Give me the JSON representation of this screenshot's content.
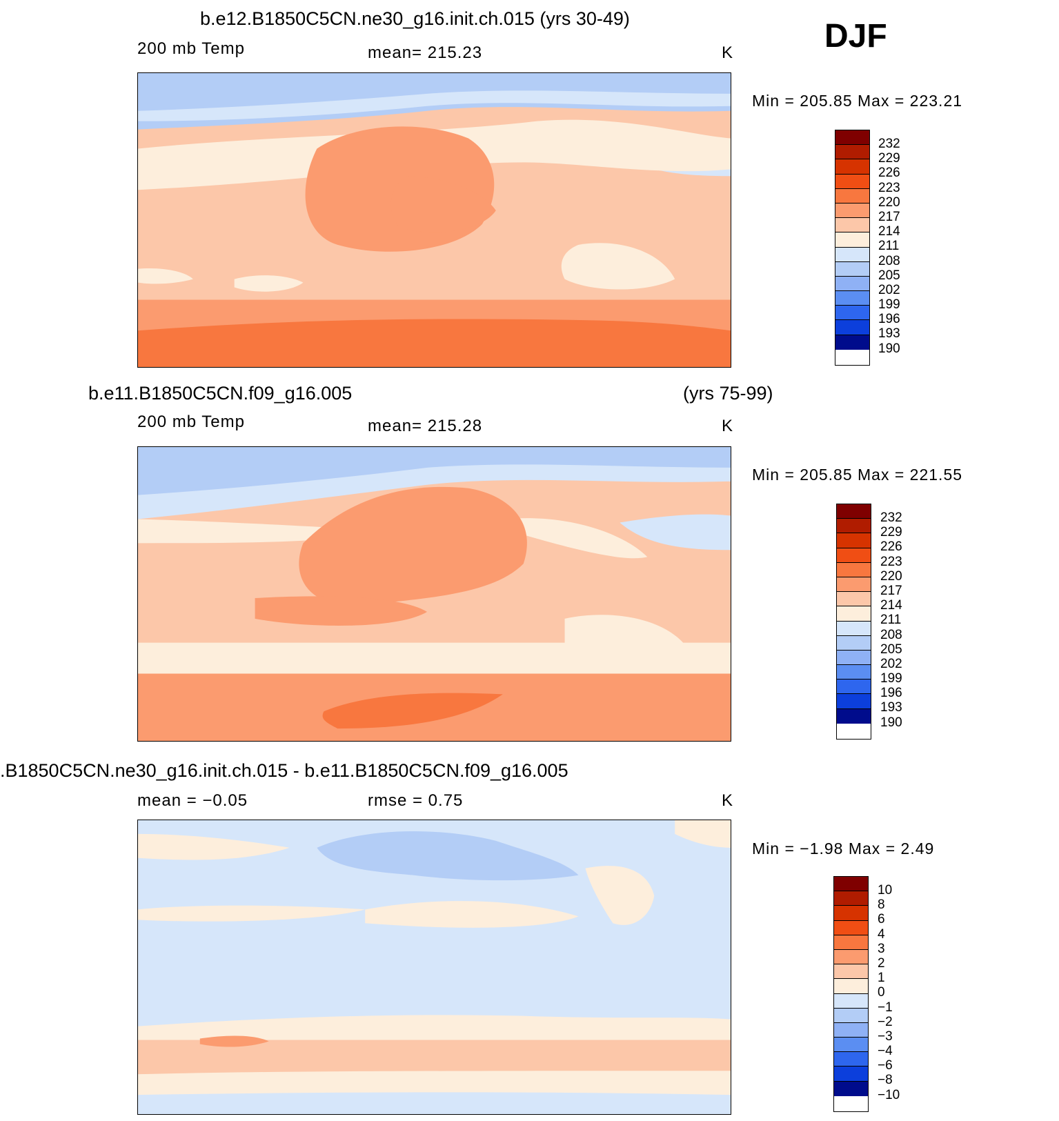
{
  "season": "DJF",
  "panels": [
    {
      "title": "b.e12.B1850C5CN.ne30_g16.init.ch.015 (yrs 30-49)",
      "variable": "200 mb Temp",
      "stat": "mean= 215.23",
      "units": "K",
      "minmax": "Min = 205.85 Max = 223.21",
      "levels": [
        "232",
        "229",
        "226",
        "223",
        "220",
        "217",
        "214",
        "211",
        "208",
        "205",
        "202",
        "199",
        "196",
        "193",
        "190"
      ]
    },
    {
      "title": "b.e11.B1850C5CN.f09_g16.005",
      "title_right": "(yrs 75-99)",
      "variable": "200 mb Temp",
      "stat": "mean= 215.28",
      "units": "K",
      "minmax": "Min = 205.85 Max = 221.55",
      "levels": [
        "232",
        "229",
        "226",
        "223",
        "220",
        "217",
        "214",
        "211",
        "208",
        "205",
        "202",
        "199",
        "196",
        "193",
        "190"
      ]
    },
    {
      "title": ".B1850C5CN.ne30_g16.init.ch.015 - b.e11.B1850C5CN.f09_g16.005",
      "stat_left": "mean = −0.05",
      "stat": "rmse = 0.75",
      "units": "K",
      "minmax": "Min = −1.98 Max = 2.49",
      "levels": [
        "10",
        "8",
        "6",
        "4",
        "3",
        "2",
        "1",
        "0",
        "−1",
        "−2",
        "−3",
        "−4",
        "−6",
        "−8",
        "−10"
      ]
    }
  ],
  "colors": {
    "scale": [
      "#7f0000",
      "#b01c00",
      "#d63300",
      "#f04e14",
      "#f8773f",
      "#fb9b6f",
      "#fcc7a9",
      "#fdeedc",
      "#d6e6fa",
      "#b3cdf6",
      "#8fb1f5",
      "#5b8ef2",
      "#2e66ee",
      "#0c3fdc",
      "#000c8c"
    ]
  }
}
